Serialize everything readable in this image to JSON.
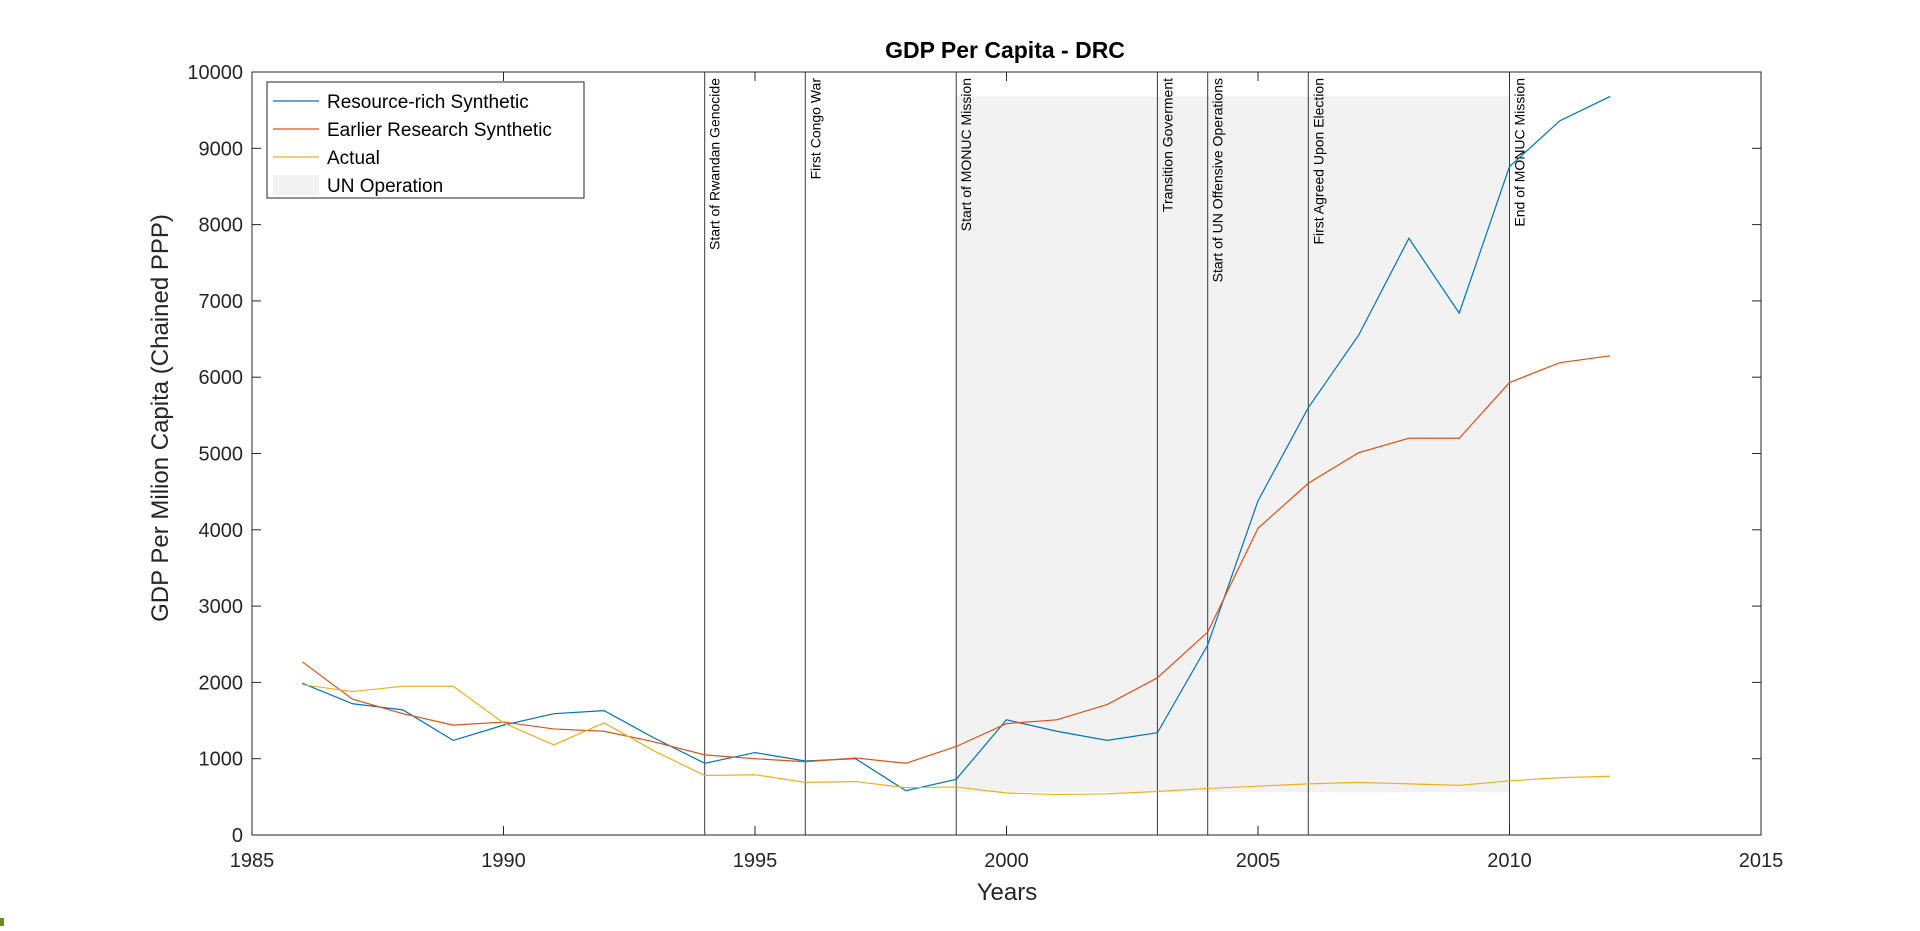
{
  "chart_data": {
    "type": "line",
    "title": "GDP Per Capita - DRC",
    "xlabel": "Years",
    "ylabel": "GDP Per Milion Capita (Chained PPP)",
    "xlim": [
      1985,
      2015
    ],
    "ylim": [
      0,
      10000
    ],
    "xticks": [
      1985,
      1990,
      1995,
      2000,
      2005,
      2010,
      2015
    ],
    "yticks": [
      0,
      1000,
      2000,
      3000,
      4000,
      5000,
      6000,
      7000,
      8000,
      9000,
      10000
    ],
    "grid": false,
    "legend_position": "top-left",
    "x": [
      1986,
      1987,
      1988,
      1989,
      1990,
      1991,
      1992,
      1993,
      1994,
      1995,
      1996,
      1997,
      1998,
      1999,
      2000,
      2001,
      2002,
      2003,
      2004,
      2005,
      2006,
      2007,
      2008,
      2009,
      2010,
      2011,
      2012
    ],
    "series": [
      {
        "name": "Resource-rich Synthetic",
        "color": "#0072BD",
        "values": [
          1990,
          1720,
          1640,
          1240,
          1440,
          1590,
          1630,
          1270,
          940,
          1080,
          970,
          1000,
          580,
          730,
          1510,
          1360,
          1240,
          1340,
          2490,
          4380,
          5600,
          6550,
          7820,
          6840,
          8760,
          9360,
          9680
        ]
      },
      {
        "name": "Earlier Research Synthetic",
        "color": "#D95319",
        "values": [
          2270,
          1780,
          1590,
          1440,
          1480,
          1390,
          1360,
          1220,
          1050,
          1000,
          960,
          1010,
          940,
          1160,
          1460,
          1510,
          1710,
          2060,
          2660,
          4020,
          4610,
          5010,
          5200,
          5200,
          5930,
          6190,
          6280
        ]
      },
      {
        "name": "Actual",
        "color": "#EDB120",
        "values": [
          1970,
          1880,
          1950,
          1950,
          1470,
          1180,
          1470,
          1100,
          780,
          790,
          690,
          700,
          620,
          630,
          550,
          530,
          540,
          570,
          610,
          640,
          670,
          690,
          670,
          650,
          710,
          750,
          770
        ]
      }
    ],
    "shaded_region": {
      "name": "UN Operation",
      "x_start": 1999,
      "x_end": 2010,
      "y_start": 560,
      "y_end": 9680,
      "color": "#F2F2F2"
    },
    "event_lines": [
      {
        "x": 1994,
        "label": "Start of Rwandan Genocide"
      },
      {
        "x": 1996,
        "label": "First Congo War"
      },
      {
        "x": 1999,
        "label": "Start of MONUC Mission"
      },
      {
        "x": 2003,
        "label": "Transition Goverment"
      },
      {
        "x": 2004,
        "label": "Start of UN Offensive Operations"
      },
      {
        "x": 2006,
        "label": "First Agreed Upon Election"
      },
      {
        "x": 2010,
        "label": "End of MONUC Mission"
      }
    ]
  }
}
